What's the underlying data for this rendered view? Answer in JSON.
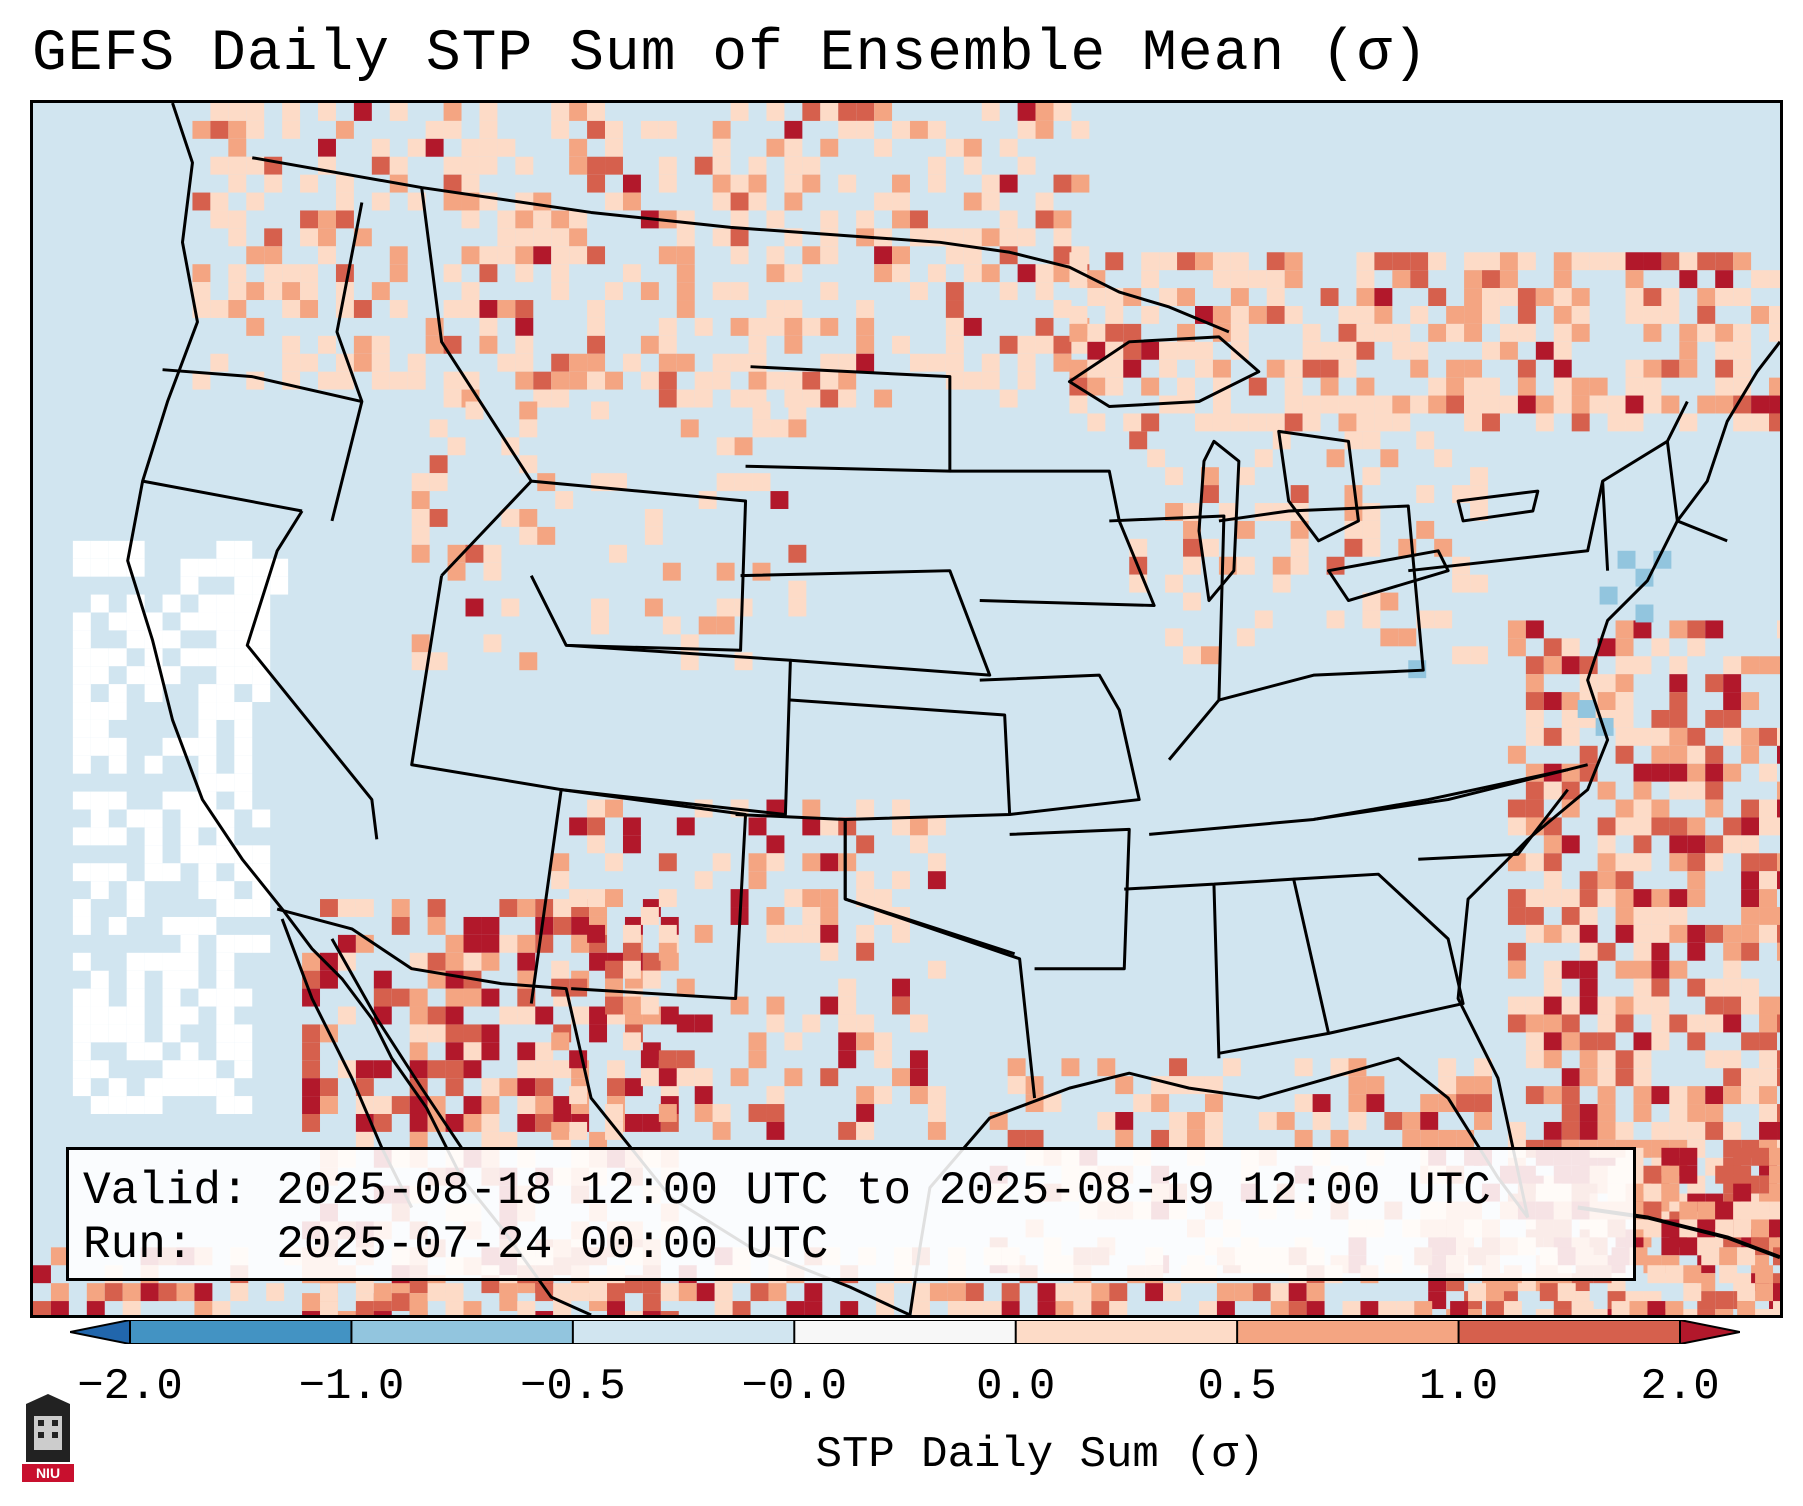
{
  "title": "GEFS Daily STP Sum of Ensemble Mean (σ)",
  "info": {
    "valid_label": "Valid:",
    "valid_value": "2025-08-18 12:00 UTC to 2025-08-19 12:00 UTC",
    "run_label": "Run:",
    "run_value": "2025-07-24 00:00 UTC"
  },
  "colorbar": {
    "label": "STP Daily Sum (σ)",
    "ticks": [
      "−2.0",
      "−1.0",
      "−0.5",
      "−0.0",
      "0.0",
      "0.5",
      "1.0",
      "2.0"
    ],
    "bin_colors": [
      "#4393c3",
      "#92c5de",
      "#d1e5f0",
      "#f7f7f7",
      "#fddbc7",
      "#f4a582",
      "#d6604d"
    ],
    "under_color": "#2166ac",
    "over_color": "#b2182b"
  },
  "colors": {
    "background": "#d1e5f0",
    "neutral": "#ffffff",
    "light_pos": "#fddbc7",
    "mid_pos": "#f4a582",
    "strong_pos": "#d6604d",
    "max_pos": "#b2182b",
    "light_neg": "#92c5de"
  },
  "logo_text": "NIU"
}
